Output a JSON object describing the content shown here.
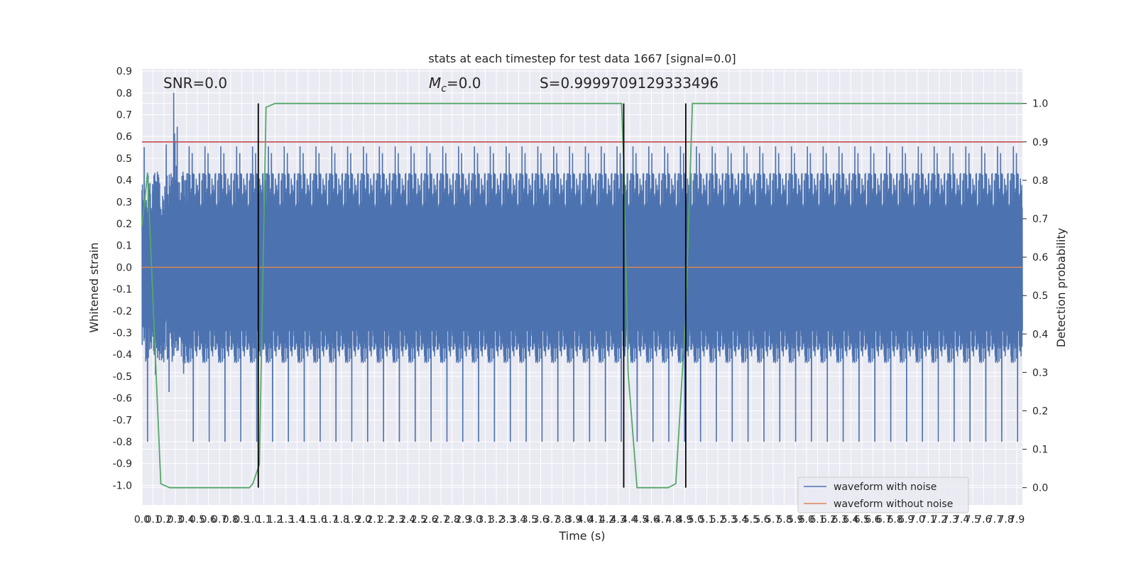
{
  "chart_data": {
    "type": "line",
    "title": "stats at each timestep for test data 1667 [signal=0.0]",
    "xlabel": "Time (s)",
    "ylabel": "Whitened strain",
    "y2label": "Detection probability",
    "xlim": [
      0.0,
      7.95
    ],
    "ylim": [
      -1.09,
      0.91
    ],
    "y2lim": [
      -0.045,
      1.09
    ],
    "x_tick_step": 0.1,
    "y_tick_step": 0.1,
    "y2_ticks": [
      0.0,
      0.1,
      0.2,
      0.3,
      0.4,
      0.5,
      0.6,
      0.7,
      0.8,
      0.9,
      1.0
    ],
    "grid": true,
    "legend_location": "lower-right",
    "annotations": {
      "snr": "SNR=0.0",
      "mc_symbol": "M",
      "mc_sub": "c",
      "mc_value": "=0.0",
      "s": "S=0.9999709129333496"
    },
    "series": [
      {
        "name": "waveform with noise",
        "color": "#4c72b0",
        "description": "noisy strain oscillating roughly between -0.8 and 0.8",
        "peak_amplitude": 0.8
      },
      {
        "name": "waveform without noise",
        "color": "#dd8452",
        "constant_value": 0.0
      },
      {
        "axis": "right",
        "color": "#55a868",
        "x": [
          0.0,
          0.05,
          0.17,
          0.25,
          0.97,
          1.0,
          1.06,
          1.12,
          1.2,
          4.33,
          4.35,
          4.39,
          4.47,
          4.75,
          4.82,
          4.91,
          4.97,
          5.05,
          7.95
        ],
        "values": [
          0.68,
          0.82,
          0.01,
          0.0,
          0.0,
          0.01,
          0.06,
          0.99,
          1.0,
          1.0,
          0.85,
          0.3,
          0.0,
          0.0,
          0.01,
          0.45,
          1.0,
          1.0,
          1.0
        ]
      }
    ],
    "threshold": {
      "axis": "right",
      "value": 0.9,
      "color": "#c44e52"
    },
    "vertical_markers": {
      "x": [
        1.05,
        4.35,
        4.91
      ],
      "color": "#000000"
    }
  }
}
